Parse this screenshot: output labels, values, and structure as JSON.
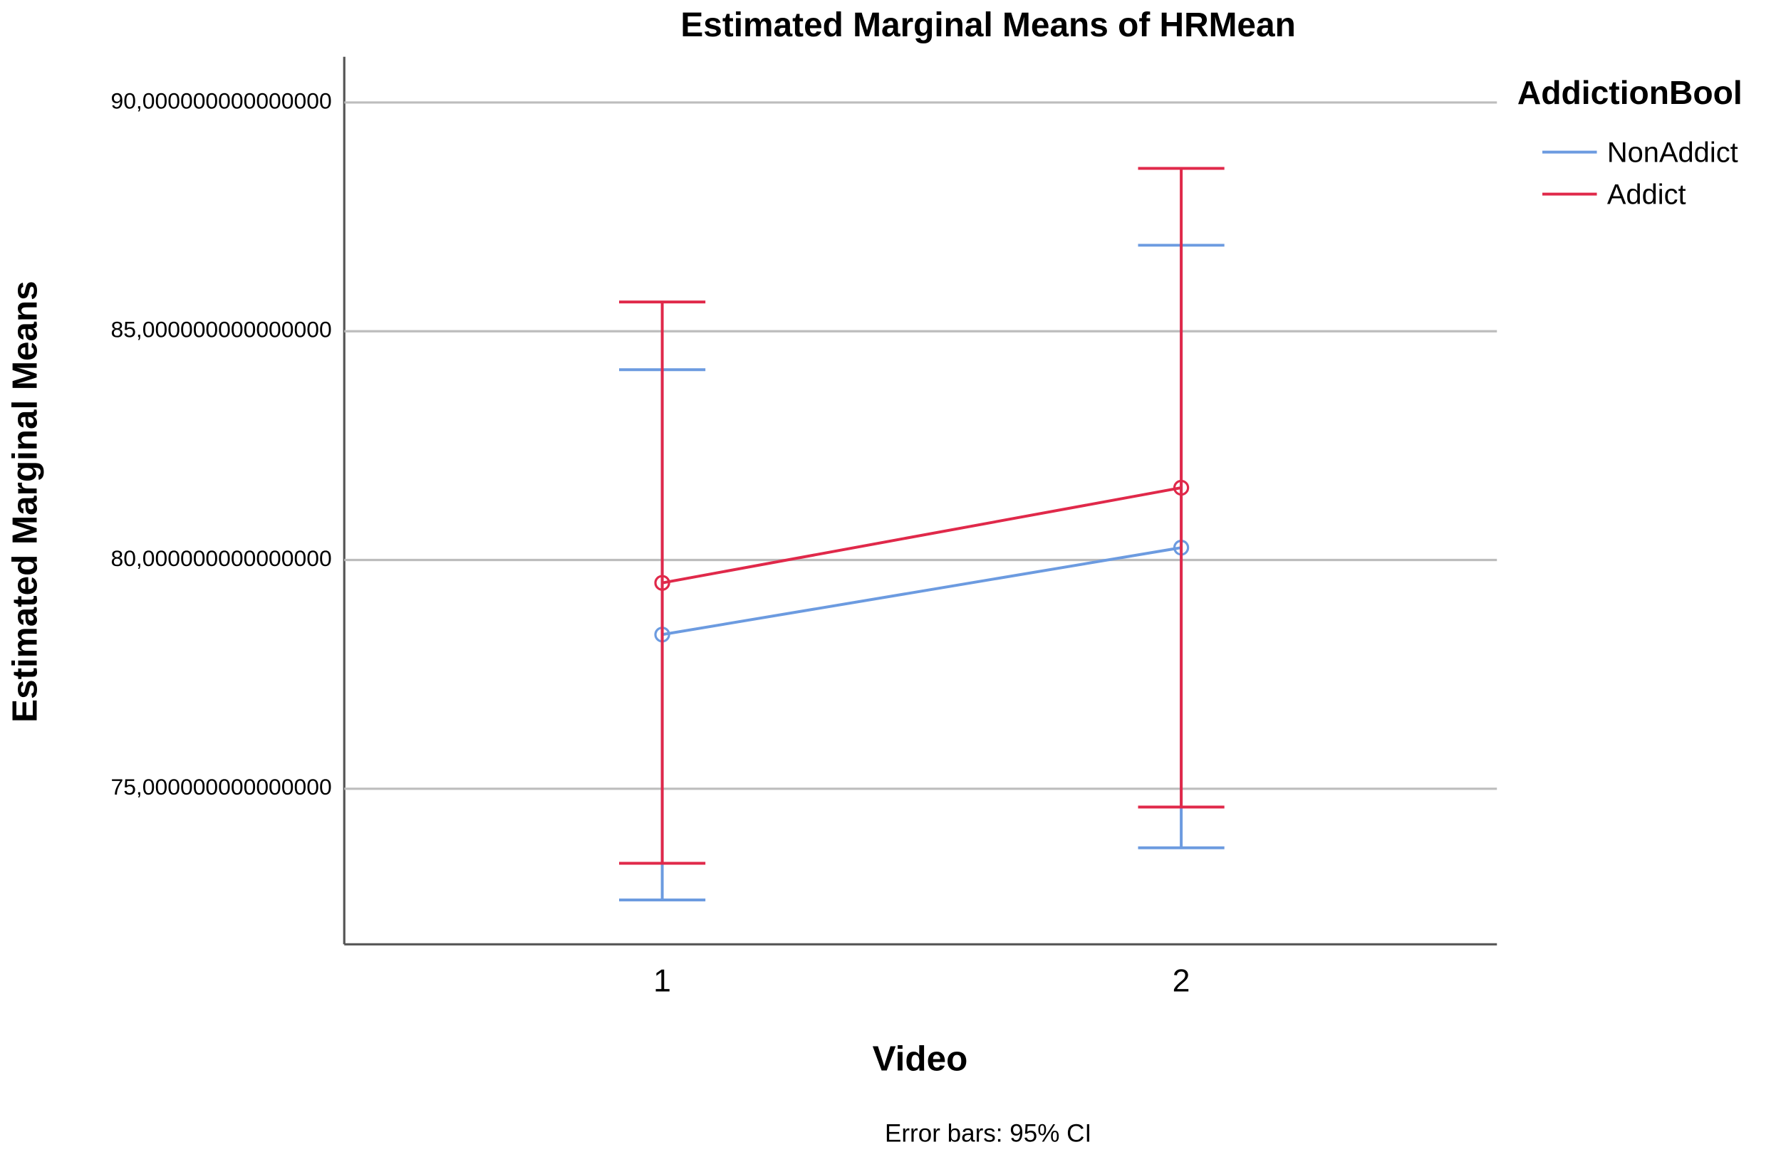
{
  "chart_data": {
    "type": "line",
    "title": "Estimated Marginal Means of HRMean",
    "x_label": "Video",
    "y_label": "Estimated Marginal Means",
    "footnote": "Error bars: 95% CI",
    "legend_title": "AddictionBool",
    "legend_position": "right",
    "grid": true,
    "categories": [
      "1",
      "2"
    ],
    "ylim": [
      71.6,
      91
    ],
    "yticks": [
      {
        "value": 75,
        "label": "75,000000000000000"
      },
      {
        "value": 80,
        "label": "80,000000000000000"
      },
      {
        "value": 85,
        "label": "85,000000000000000"
      },
      {
        "value": 90,
        "label": "90,000000000000000"
      }
    ],
    "series": [
      {
        "name": "NonAddict",
        "color": "#6c9be0",
        "values": [
          78.37,
          80.27
        ],
        "ci_lower": [
          72.57,
          73.71
        ],
        "ci_upper": [
          84.16,
          86.88
        ]
      },
      {
        "name": "Addict",
        "color": "#e0294a",
        "values": [
          79.5,
          81.58
        ],
        "ci_lower": [
          73.37,
          74.6
        ],
        "ci_upper": [
          85.64,
          88.56
        ]
      }
    ]
  }
}
